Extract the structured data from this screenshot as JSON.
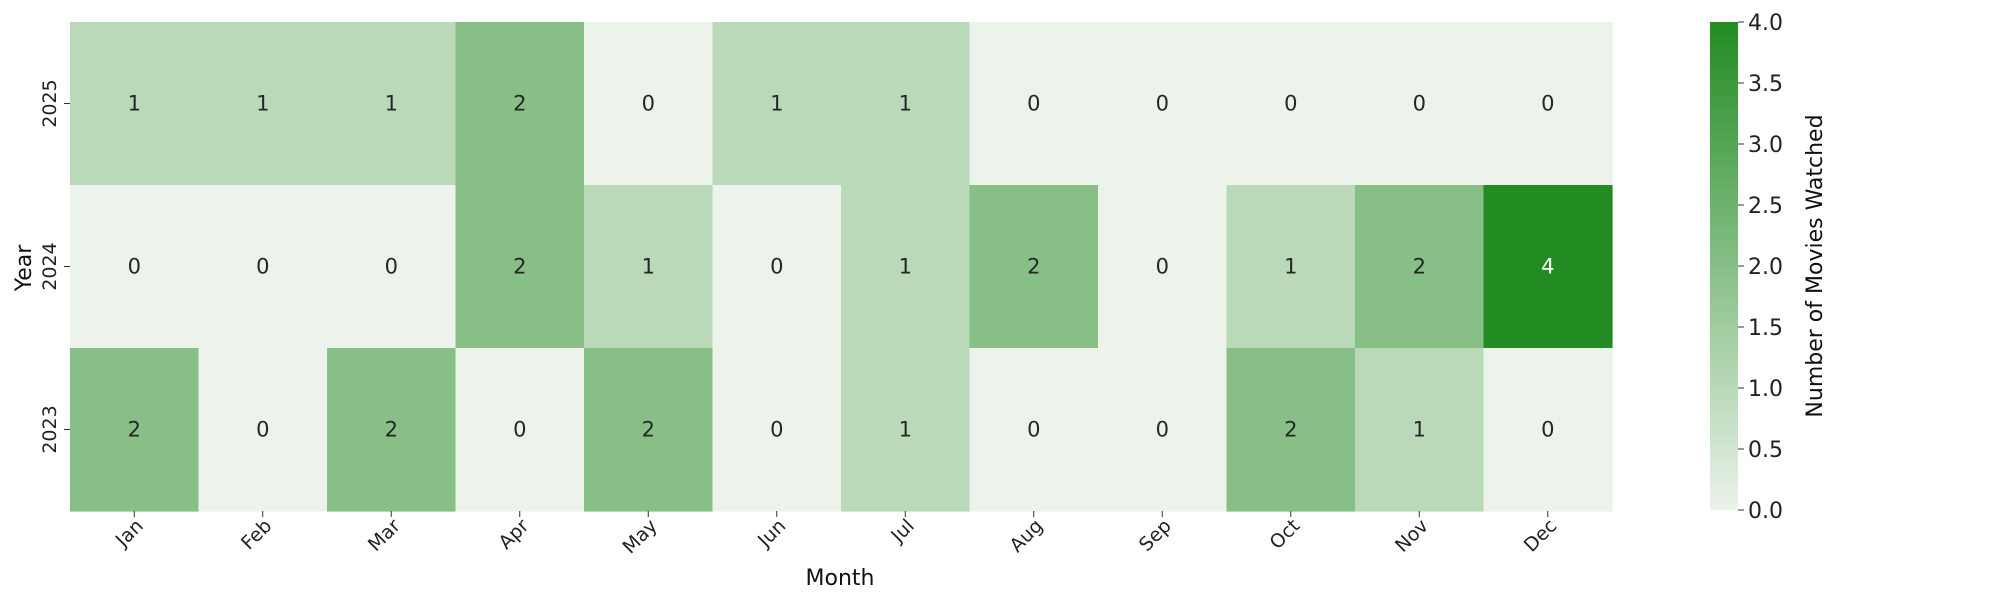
{
  "chart_data": {
    "type": "heatmap",
    "x_categories": [
      "Jan",
      "Feb",
      "Mar",
      "Apr",
      "May",
      "Jun",
      "Jul",
      "Aug",
      "Sep",
      "Oct",
      "Nov",
      "Dec"
    ],
    "y_categories": [
      "2025",
      "2024",
      "2023"
    ],
    "values": [
      [
        1,
        1,
        1,
        2,
        0,
        1,
        1,
        0,
        0,
        0,
        0,
        0
      ],
      [
        0,
        0,
        0,
        2,
        1,
        0,
        1,
        2,
        0,
        1,
        2,
        4
      ],
      [
        2,
        0,
        2,
        0,
        2,
        0,
        1,
        0,
        0,
        2,
        1,
        0
      ]
    ],
    "xlabel": "Month",
    "ylabel": "Year",
    "colorbar": {
      "label": "Number of Movies Watched",
      "range": [
        0.0,
        4.0
      ],
      "ticks": [
        "0.0",
        "0.5",
        "1.0",
        "1.5",
        "2.0",
        "2.5",
        "3.0",
        "3.5",
        "4.0"
      ],
      "color_low": "#ebf3ea",
      "color_high": "#228b22"
    },
    "annotations": true,
    "legend": "colorbar-right"
  }
}
